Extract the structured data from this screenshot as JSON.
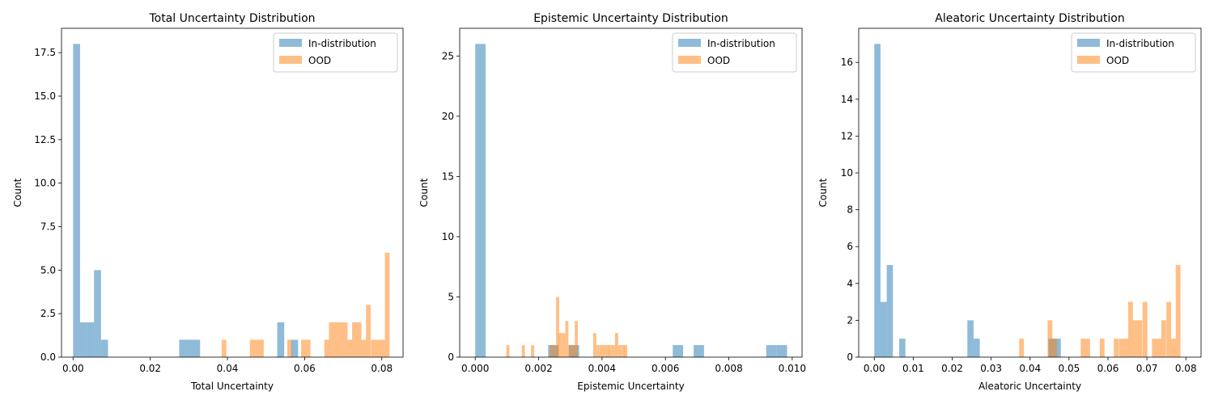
{
  "colors": {
    "in_distribution": "#1f77b4",
    "ood": "#ff7f0e",
    "alpha": 0.5
  },
  "chart_data": [
    {
      "type": "bar",
      "title": "Total Uncertainty Distribution",
      "xlabel": "Total Uncertainty",
      "ylabel": "Count",
      "xlim": [
        -0.003,
        0.0855
      ],
      "ylim": [
        0,
        18.9
      ],
      "xticks": [
        0.0,
        0.02,
        0.04,
        0.06,
        0.08
      ],
      "xtick_labels": [
        "0.00",
        "0.02",
        "0.04",
        "0.06",
        "0.08"
      ],
      "yticks": [
        0.0,
        2.5,
        5.0,
        7.5,
        10.0,
        12.5,
        15.0,
        17.5
      ],
      "ytick_labels": [
        "0.0",
        "2.5",
        "5.0",
        "7.5",
        "10.0",
        "12.5",
        "15.0",
        "17.5"
      ],
      "legend": {
        "position": "upper right",
        "entries": [
          "In-distribution",
          "OOD"
        ]
      },
      "series": [
        {
          "name": "In-distribution",
          "bin_width": 0.00181,
          "bins": [
            [
              0.0,
              18
            ],
            [
              0.00181,
              2
            ],
            [
              0.00362,
              2
            ],
            [
              0.00543,
              5
            ],
            [
              0.00724,
              1
            ],
            [
              0.0275,
              1
            ],
            [
              0.0293,
              1
            ],
            [
              0.0311,
              1
            ],
            [
              0.0529,
              2
            ],
            [
              0.0565,
              1
            ]
          ]
        },
        {
          "name": "OOD",
          "bin_width": 0.00121,
          "bins": [
            [
              0.0385,
              1
            ],
            [
              0.0458,
              1
            ],
            [
              0.047,
              1
            ],
            [
              0.0482,
              1
            ],
            [
              0.0555,
              1
            ],
            [
              0.0591,
              1
            ],
            [
              0.0603,
              1
            ],
            [
              0.0651,
              1
            ],
            [
              0.0663,
              2
            ],
            [
              0.0675,
              2
            ],
            [
              0.0687,
              2
            ],
            [
              0.0699,
              2
            ],
            [
              0.0711,
              1
            ],
            [
              0.0723,
              2
            ],
            [
              0.0735,
              2
            ],
            [
              0.0747,
              1
            ],
            [
              0.0759,
              3
            ],
            [
              0.0772,
              1
            ],
            [
              0.0784,
              1
            ],
            [
              0.0796,
              1
            ],
            [
              0.0808,
              6
            ]
          ]
        }
      ]
    },
    {
      "type": "bar",
      "title": "Epistemic Uncertainty Distribution",
      "xlabel": "Epistemic Uncertainty",
      "ylabel": "Count",
      "xlim": [
        -0.00049,
        0.01031
      ],
      "ylim": [
        0,
        27.3
      ],
      "xticks": [
        0.0,
        0.002,
        0.004,
        0.006,
        0.008,
        0.01
      ],
      "xtick_labels": [
        "0.000",
        "0.002",
        "0.004",
        "0.006",
        "0.008",
        "0.010"
      ],
      "yticks": [
        0,
        5,
        10,
        15,
        20,
        25
      ],
      "ytick_labels": [
        "0",
        "5",
        "10",
        "15",
        "20",
        "25"
      ],
      "legend": {
        "position": "upper right",
        "entries": [
          "In-distribution",
          "OOD"
        ]
      },
      "series": [
        {
          "name": "In-distribution",
          "bin_width": 0.000328,
          "bins": [
            [
              0.0,
              26
            ],
            [
              0.0023,
              1
            ],
            [
              0.00295,
              1
            ],
            [
              0.00623,
              1
            ],
            [
              0.00689,
              1
            ],
            [
              0.00918,
              1
            ],
            [
              0.00951,
              1
            ]
          ]
        },
        {
          "name": "OOD",
          "bin_width": 9.8e-05,
          "bins": [
            [
              0.00098,
              1
            ],
            [
              0.00147,
              1
            ],
            [
              0.00176,
              1
            ],
            [
              0.00235,
              1
            ],
            [
              0.00245,
              1
            ],
            [
              0.00255,
              5
            ],
            [
              0.00264,
              2
            ],
            [
              0.00274,
              2
            ],
            [
              0.00284,
              3
            ],
            [
              0.00294,
              1
            ],
            [
              0.00304,
              1
            ],
            [
              0.00314,
              3
            ],
            [
              0.00372,
              2
            ],
            [
              0.00382,
              1
            ],
            [
              0.00392,
              1
            ],
            [
              0.00402,
              1
            ],
            [
              0.00412,
              1
            ],
            [
              0.00421,
              1
            ],
            [
              0.00431,
              1
            ],
            [
              0.00441,
              2
            ],
            [
              0.00451,
              1
            ],
            [
              0.00461,
              1
            ],
            [
              0.0047,
              1
            ]
          ]
        }
      ]
    },
    {
      "type": "bar",
      "title": "Aleatoric Uncertainty Distribution",
      "xlabel": "Aleatoric Uncertainty",
      "ylabel": "Count",
      "xlim": [
        -0.004,
        0.0839
      ],
      "ylim": [
        0,
        17.85
      ],
      "xticks": [
        0.0,
        0.01,
        0.02,
        0.03,
        0.04,
        0.05,
        0.06,
        0.07,
        0.08
      ],
      "xtick_labels": [
        "0.00",
        "0.01",
        "0.02",
        "0.03",
        "0.04",
        "0.05",
        "0.06",
        "0.07",
        "0.08"
      ],
      "yticks": [
        0,
        2,
        4,
        6,
        8,
        10,
        12,
        14,
        16
      ],
      "ytick_labels": [
        "0",
        "2",
        "4",
        "6",
        "8",
        "10",
        "12",
        "14",
        "16"
      ],
      "legend": {
        "position": "upper right",
        "entries": [
          "In-distribution",
          "OOD"
        ]
      },
      "series": [
        {
          "name": "In-distribution",
          "bin_width": 0.001595,
          "bins": [
            [
              0.0,
              17
            ],
            [
              0.0016,
              3
            ],
            [
              0.0032,
              5
            ],
            [
              0.0064,
              1
            ],
            [
              0.0239,
              2
            ],
            [
              0.0255,
              1
            ],
            [
              0.0447,
              1
            ],
            [
              0.0463,
              1
            ]
          ]
        },
        {
          "name": "OOD",
          "bin_width": 0.00122,
          "bins": [
            [
              0.0372,
              1
            ],
            [
              0.0445,
              2
            ],
            [
              0.0457,
              1
            ],
            [
              0.053,
              1
            ],
            [
              0.0542,
              1
            ],
            [
              0.0579,
              1
            ],
            [
              0.0615,
              1
            ],
            [
              0.0628,
              1
            ],
            [
              0.064,
              1
            ],
            [
              0.0652,
              3
            ],
            [
              0.0664,
              2
            ],
            [
              0.0676,
              2
            ],
            [
              0.0689,
              3
            ],
            [
              0.0713,
              1
            ],
            [
              0.0725,
              1
            ],
            [
              0.0737,
              2
            ],
            [
              0.075,
              3
            ],
            [
              0.0762,
              1
            ],
            [
              0.0774,
              5
            ]
          ]
        }
      ]
    }
  ]
}
